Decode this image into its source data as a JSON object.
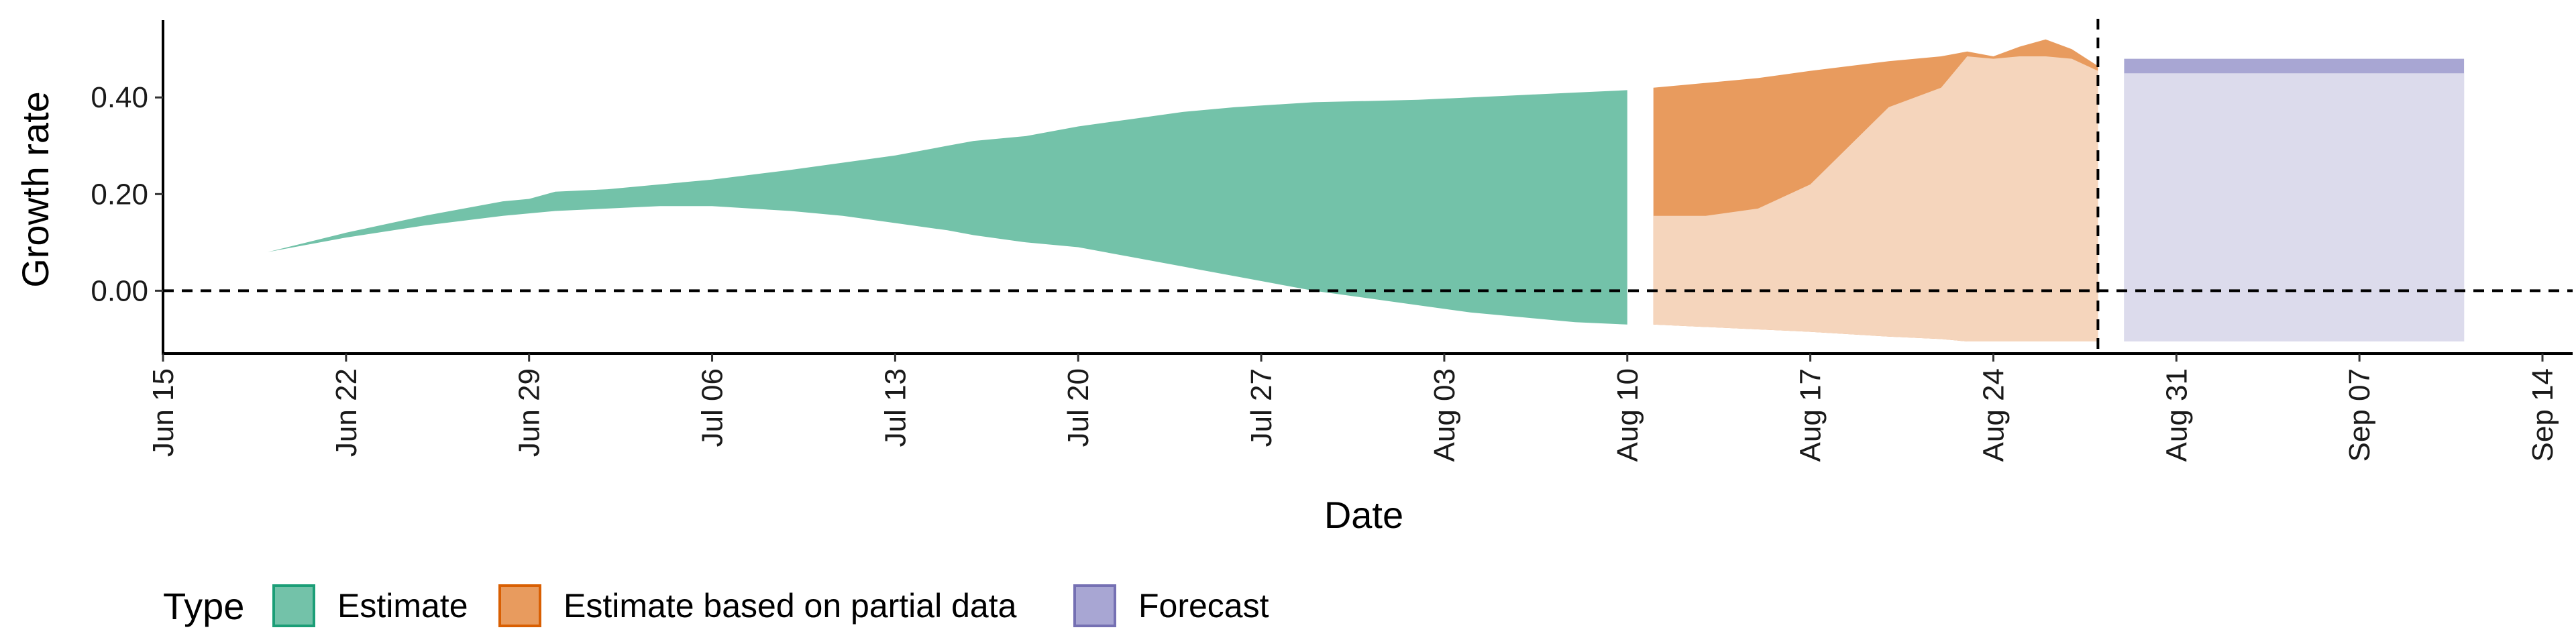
{
  "chart_data": {
    "type": "area",
    "xlabel": "Date",
    "ylabel": "Growth rate",
    "x_ticks": [
      "Jun 15",
      "Jun 22",
      "Jun 29",
      "Jul 06",
      "Jul 13",
      "Jul 20",
      "Jul 27",
      "Aug 03",
      "Aug 10",
      "Aug 17",
      "Aug 24",
      "Aug 31",
      "Sep 07",
      "Sep 14"
    ],
    "x_range": [
      "2020-06-15",
      "2020-09-14"
    ],
    "y_ticks": [
      "0.00",
      "0.20",
      "0.40"
    ],
    "y_tick_values": [
      0.0,
      0.2,
      0.4
    ],
    "ylim": [
      -0.13,
      0.56
    ],
    "reference_lines": [
      {
        "axis": "y",
        "value": 0.0,
        "style": "dashed"
      },
      {
        "axis": "x",
        "value": "2020-08-28",
        "style": "dashed"
      }
    ],
    "legend": {
      "title": "Type",
      "placement": "bottom",
      "entries": [
        "Estimate",
        "Estimate based on partial data",
        "Forecast"
      ]
    },
    "series": [
      {
        "name": "Estimate",
        "outer_fill": "#73c2a9",
        "inner_fill": "#c5e6dc",
        "stroke": "#1b9e77",
        "points": [
          {
            "x": "2020-06-19",
            "outer_low": 0.08,
            "inner_low": 0.08,
            "inner_high": 0.08,
            "outer_high": 0.08
          },
          {
            "x": "2020-06-22",
            "outer_low": 0.11,
            "inner_low": 0.11,
            "inner_high": 0.11,
            "outer_high": 0.12
          },
          {
            "x": "2020-06-25",
            "outer_low": 0.135,
            "inner_low": 0.15,
            "inner_high": 0.15,
            "outer_high": 0.155
          },
          {
            "x": "2020-06-28",
            "outer_low": 0.155,
            "inner_low": 0.18,
            "inner_high": 0.18,
            "outer_high": 0.185
          },
          {
            "x": "2020-06-29",
            "outer_low": 0.16,
            "inner_low": 0.17,
            "inner_high": 0.17,
            "outer_high": 0.19
          },
          {
            "x": "2020-06-30",
            "outer_low": 0.165,
            "inner_low": 0.2,
            "inner_high": 0.2,
            "outer_high": 0.205
          },
          {
            "x": "2020-07-02",
            "outer_low": 0.17,
            "inner_low": 0.19,
            "inner_high": 0.19,
            "outer_high": 0.21
          },
          {
            "x": "2020-07-04",
            "outer_low": 0.175,
            "inner_low": 0.2,
            "inner_high": 0.2,
            "outer_high": 0.22
          },
          {
            "x": "2020-07-06",
            "outer_low": 0.175,
            "inner_low": 0.235,
            "inner_high": 0.235,
            "outer_high": 0.23
          },
          {
            "x": "2020-07-09",
            "outer_low": 0.165,
            "inner_low": 0.255,
            "inner_high": 0.255,
            "outer_high": 0.25
          },
          {
            "x": "2020-07-11",
            "outer_low": 0.155,
            "inner_low": 0.235,
            "inner_high": 0.235,
            "outer_high": 0.265
          },
          {
            "x": "2020-07-13",
            "outer_low": 0.14,
            "inner_low": 0.275,
            "inner_high": 0.275,
            "outer_high": 0.28
          },
          {
            "x": "2020-07-15",
            "outer_low": 0.125,
            "inner_low": 0.31,
            "inner_high": 0.31,
            "outer_high": 0.3
          },
          {
            "x": "2020-07-16",
            "outer_low": 0.115,
            "inner_low": 0.325,
            "inner_high": 0.325,
            "outer_high": 0.31
          },
          {
            "x": "2020-07-18",
            "outer_low": 0.1,
            "inner_low": 0.3,
            "inner_high": 0.3,
            "outer_high": 0.32
          },
          {
            "x": "2020-07-20",
            "outer_low": 0.09,
            "inner_low": 0.305,
            "inner_high": 0.305,
            "outer_high": 0.34
          },
          {
            "x": "2020-07-22",
            "outer_low": 0.07,
            "inner_low": 0.27,
            "inner_high": 0.27,
            "outer_high": 0.355
          },
          {
            "x": "2020-07-24",
            "outer_low": 0.05,
            "inner_low": 0.22,
            "inner_high": 0.22,
            "outer_high": 0.37
          },
          {
            "x": "2020-07-26",
            "outer_low": 0.03,
            "inner_low": 0.175,
            "inner_high": 0.175,
            "outer_high": 0.38
          },
          {
            "x": "2020-07-29",
            "outer_low": 0.0,
            "inner_low": 0.18,
            "inner_high": 0.18,
            "outer_high": 0.39
          },
          {
            "x": "2020-08-02",
            "outer_low": -0.03,
            "inner_low": 0.165,
            "inner_high": 0.165,
            "outer_high": 0.395
          },
          {
            "x": "2020-08-04",
            "outer_low": -0.045,
            "inner_low": 0.195,
            "inner_high": 0.195,
            "outer_high": 0.4
          },
          {
            "x": "2020-08-06",
            "outer_low": -0.055,
            "inner_low": 0.22,
            "inner_high": 0.22,
            "outer_high": 0.405
          },
          {
            "x": "2020-08-08",
            "outer_low": -0.065,
            "inner_low": 0.21,
            "inner_high": 0.21,
            "outer_high": 0.41
          },
          {
            "x": "2020-08-10",
            "outer_low": -0.07,
            "inner_low": 0.175,
            "inner_high": 0.175,
            "outer_high": 0.415
          }
        ]
      },
      {
        "name": "Estimate based on partial data",
        "outer_fill": "#e89b5e",
        "inner_fill": "#f5d5bc",
        "stroke": "#d95f02",
        "points": [
          {
            "x": "2020-08-11",
            "outer_low": -0.07,
            "inner_low": -0.07,
            "inner_high": 0.155,
            "outer_high": 0.42
          },
          {
            "x": "2020-08-13",
            "outer_low": -0.075,
            "inner_low": -0.075,
            "inner_high": 0.155,
            "outer_high": 0.43
          },
          {
            "x": "2020-08-15",
            "outer_low": -0.08,
            "inner_low": -0.08,
            "inner_high": 0.17,
            "outer_high": 0.44
          },
          {
            "x": "2020-08-17",
            "outer_low": -0.085,
            "inner_low": -0.085,
            "inner_high": 0.22,
            "outer_high": 0.455
          },
          {
            "x": "2020-08-20",
            "outer_low": -0.095,
            "inner_low": -0.095,
            "inner_high": 0.38,
            "outer_high": 0.475
          },
          {
            "x": "2020-08-22",
            "outer_low": -0.1,
            "inner_low": -0.1,
            "inner_high": 0.42,
            "outer_high": 0.485
          },
          {
            "x": "2020-08-23",
            "outer_low": -0.105,
            "inner_low": -0.105,
            "inner_high": 0.485,
            "outer_high": 0.495
          },
          {
            "x": "2020-08-24",
            "outer_low": -0.105,
            "inner_low": -0.105,
            "inner_high": 0.48,
            "outer_high": 0.485
          },
          {
            "x": "2020-08-25",
            "outer_low": -0.105,
            "inner_low": -0.105,
            "inner_high": 0.485,
            "outer_high": 0.505
          },
          {
            "x": "2020-08-26",
            "outer_low": -0.105,
            "inner_low": -0.105,
            "inner_high": 0.485,
            "outer_high": 0.52
          },
          {
            "x": "2020-08-27",
            "outer_low": -0.105,
            "inner_low": -0.105,
            "inner_high": 0.48,
            "outer_high": 0.5
          },
          {
            "x": "2020-08-28",
            "outer_low": -0.105,
            "inner_low": -0.105,
            "inner_high": 0.455,
            "outer_high": 0.465
          }
        ]
      },
      {
        "name": "Forecast",
        "outer_fill": "#a8a6d3",
        "inner_fill": "#dcdbec",
        "stroke": "#7570b3",
        "points": [
          {
            "x": "2020-08-29",
            "outer_low": -0.105,
            "inner_low": -0.105,
            "inner_high": 0.45,
            "outer_high": 0.48
          },
          {
            "x": "2020-09-11",
            "outer_low": -0.105,
            "inner_low": -0.105,
            "inner_high": 0.45,
            "outer_high": 0.48
          }
        ]
      }
    ]
  }
}
